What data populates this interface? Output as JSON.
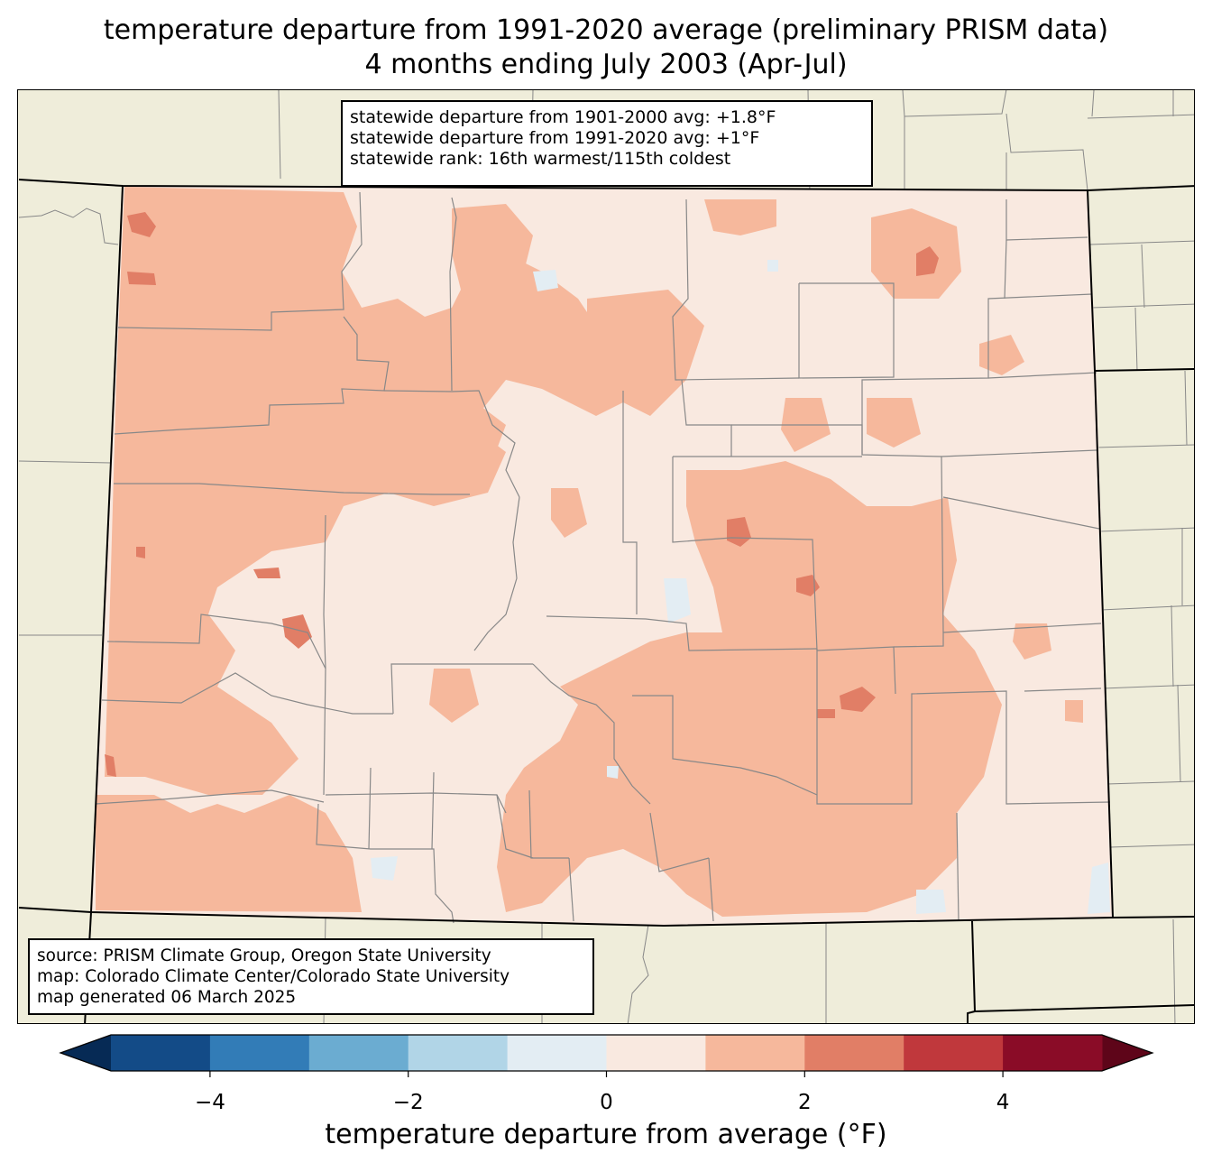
{
  "title": {
    "line1": "temperature departure from 1991-2020 average (preliminary PRISM data)",
    "line2": "4 months ending July 2003 (Apr-Jul)"
  },
  "stats_box": {
    "line1": "statewide departure from 1901-2000 avg: +1.8°F",
    "line2": "statewide departure from 1991-2020 avg: +1°F",
    "line3": "statewide rank: 16th warmest/115th coldest"
  },
  "source_box": {
    "line1": "source: PRISM Climate Group, Oregon State University",
    "line2": "map: Colorado Climate Center/Colorado State University",
    "line3": "map generated 06 March 2025"
  },
  "colorbar": {
    "label": "temperature departure from average (°F)",
    "ticks": [
      "−4",
      "−2",
      "0",
      "2",
      "4"
    ],
    "tick_values": [
      -4,
      -2,
      0,
      2,
      4
    ],
    "range": [
      -5,
      5
    ],
    "bins": [
      {
        "from": -5,
        "to": -4,
        "color": "#134b87"
      },
      {
        "from": -4,
        "to": -3,
        "color": "#327cb7"
      },
      {
        "from": -3,
        "to": -2,
        "color": "#6bacd1"
      },
      {
        "from": -2,
        "to": -1,
        "color": "#b1d5e7"
      },
      {
        "from": -1,
        "to": 0,
        "color": "#e3edf3"
      },
      {
        "from": 0,
        "to": 1,
        "color": "#f9e9e0"
      },
      {
        "from": 1,
        "to": 2,
        "color": "#f6b89c"
      },
      {
        "from": 2,
        "to": 3,
        "color": "#e17e66"
      },
      {
        "from": 3,
        "to": 4,
        "color": "#c0383c"
      },
      {
        "from": 4,
        "to": 5,
        "color": "#8a0c27"
      }
    ],
    "extend_low_color": "#062a55",
    "extend_high_color": "#5e0519"
  },
  "map_colors": {
    "background": "#efedda",
    "county_lines": "#888888",
    "state_lines": "#000000"
  }
}
